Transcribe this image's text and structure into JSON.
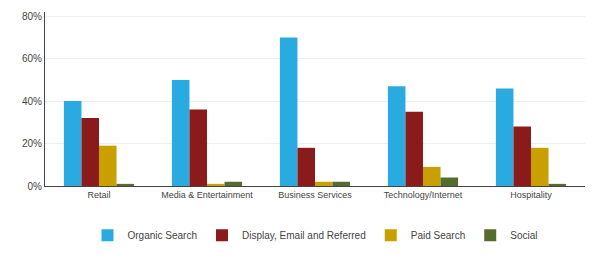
{
  "chart_data": {
    "type": "bar",
    "categories": [
      "Retail",
      "Media & Entertainment",
      "Business Services",
      "Technology/Internet",
      "Hospitality"
    ],
    "series": [
      {
        "name": "Organic Search",
        "color": "#29ABE2",
        "values": [
          40,
          50,
          70,
          47,
          46
        ]
      },
      {
        "name": "Display, Email and Referred",
        "color": "#8B1A1A",
        "values": [
          32,
          36,
          18,
          35,
          28
        ]
      },
      {
        "name": "Paid Search",
        "color": "#C8A000",
        "values": [
          19,
          1,
          2,
          9,
          18
        ]
      },
      {
        "name": "Social",
        "color": "#556B2F",
        "values": [
          1,
          2,
          2,
          4,
          1
        ]
      }
    ],
    "ylim": [
      0,
      82
    ],
    "yticks": [
      {
        "value": 0,
        "label": "0%"
      },
      {
        "value": 20,
        "label": "20%"
      },
      {
        "value": 40,
        "label": "40%"
      },
      {
        "value": 60,
        "label": "60%"
      },
      {
        "value": 80,
        "label": "80%"
      }
    ],
    "grid": true,
    "legend": "bottom"
  }
}
